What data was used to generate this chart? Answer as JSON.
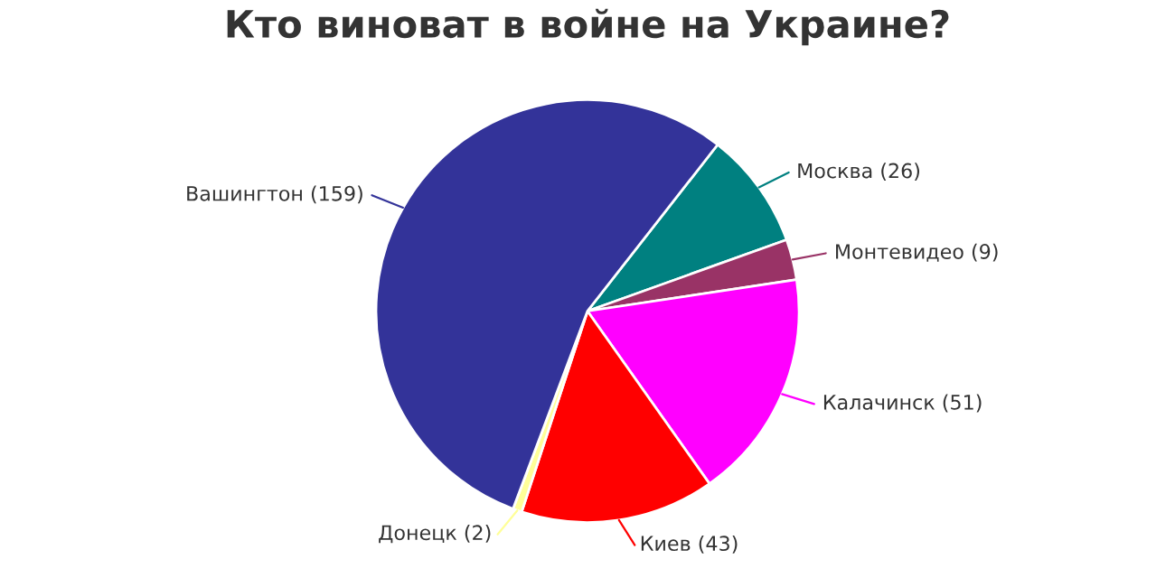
{
  "chart_data": {
    "type": "pie",
    "title": "Кто виноват в войне на Украине?",
    "categories": [
      "Москва (26)",
      "Монтевидео (9)",
      "Калачинск (51)",
      "Киев (43)",
      "Донецк (2)",
      "Вашингтон (159)"
    ],
    "values": [
      26,
      9,
      51,
      43,
      2,
      159
    ],
    "colors": [
      "#008080",
      "#993366",
      "#ff00ff",
      "#ff0000",
      "#ffff99",
      "#333399"
    ]
  }
}
